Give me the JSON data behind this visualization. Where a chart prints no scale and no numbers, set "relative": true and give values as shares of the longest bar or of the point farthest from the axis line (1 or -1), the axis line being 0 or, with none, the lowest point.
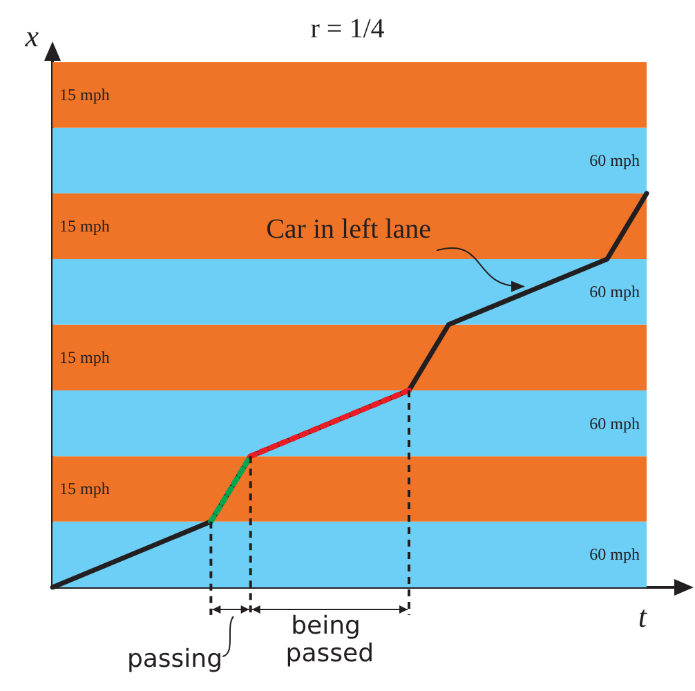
{
  "chart_data": {
    "type": "line",
    "title": "r = 1/4",
    "xlabel": "t",
    "ylabel": "x",
    "relative": true,
    "grid": false,
    "marker": "none",
    "categories": [
      null,
      null,
      null,
      null,
      null,
      null,
      null,
      null,
      null,
      null,
      null,
      null,
      null,
      null,
      null,
      null
    ],
    "series": [
      {
        "color": "#231f20",
        "values": [
          0,
          null,
          null,
          null,
          0.167,
          0.333,
          null,
          null,
          null,
          0.5,
          0.667,
          null,
          null,
          null,
          0.833,
          1
        ]
      },
      {
        "color": "#00a651",
        "line_style": "dotted",
        "values": [
          null,
          null,
          null,
          null,
          0.167,
          0.333,
          null,
          null,
          null,
          null,
          null,
          null,
          null,
          null,
          null,
          null
        ]
      },
      {
        "color": "#ed1c24",
        "line_style": "dotted",
        "values": [
          null,
          null,
          null,
          null,
          null,
          0.333,
          null,
          null,
          null,
          0.5,
          null,
          null,
          null,
          null,
          null,
          null
        ]
      }
    ],
    "bands": [
      {
        "axis": "y",
        "from": 0,
        "to": 0.167,
        "label": "60 mph",
        "color": "#6dcff6"
      },
      {
        "axis": "y",
        "from": 0.167,
        "to": 0.333,
        "label": "15 mph",
        "color": "#f07427"
      },
      {
        "axis": "y",
        "from": 0.333,
        "to": 0.5,
        "label": "60 mph",
        "color": "#6dcff6"
      },
      {
        "axis": "y",
        "from": 0.5,
        "to": 0.667,
        "label": "15 mph",
        "color": "#f07427"
      },
      {
        "axis": "y",
        "from": 0.667,
        "to": 0.833,
        "label": "60 mph",
        "color": "#6dcff6"
      },
      {
        "axis": "y",
        "from": 0.833,
        "to": 1,
        "label": "15 mph",
        "color": "#f07427"
      },
      {
        "axis": "y",
        "from": 1,
        "to": 1.167,
        "label": "60 mph",
        "color": "#6dcff6"
      },
      {
        "axis": "y",
        "from": 1.167,
        "to": 1.333,
        "label": "15 mph",
        "color": "#f07427"
      }
    ],
    "annotations": [
      "Car in left lane",
      "passing",
      "being passed"
    ]
  }
}
